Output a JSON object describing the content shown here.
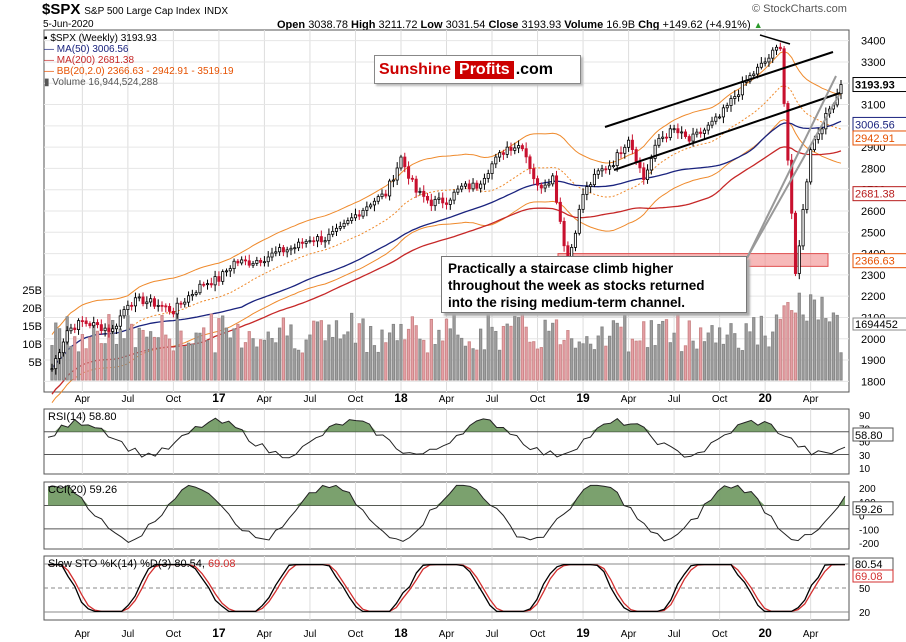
{
  "header": {
    "symbol": "$SPX",
    "name": "S&P 500 Large Cap Index",
    "exchange": "INDX",
    "date": "5-Jun-2020",
    "open_label": "Open",
    "open": "3038.78",
    "high_label": "High",
    "high": "3211.72",
    "low_label": "Low",
    "low": "3031.54",
    "close_label": "Close",
    "close": "3193.93",
    "volume_label": "Volume",
    "volume": "16.9B",
    "chg_label": "Chg",
    "chg": "+149.62 (+4.91%)",
    "chg_arrow": "▲",
    "brand": "© StockCharts.com"
  },
  "legend": {
    "main": "$SPX (Weekly) 3193.93",
    "ma50": "MA(50) 3006.56",
    "ma200": "MA(200) 2681.38",
    "bb": "BB(20,2.0) 2366.63 - 2942.91 - 3519.19",
    "volume": "Volume 16,944,524,288"
  },
  "logo": {
    "part1": "Sunshine",
    "part2": "Profits",
    "part3": ".com"
  },
  "annotation": {
    "line1": "Practically a staircase climb higher",
    "line2": "throughout the week as stocks returned",
    "line3": "into the rising medium-term channel."
  },
  "price_axis": {
    "ticks": [
      "3400",
      "3300",
      "3200",
      "3100",
      "3000",
      "2900",
      "2800",
      "2700",
      "2600",
      "2500",
      "2400",
      "2300",
      "2200",
      "2100",
      "2000",
      "1900",
      "1800"
    ],
    "badges": [
      {
        "label": "3193.93",
        "value": 3193.93,
        "color": "#000000"
      },
      {
        "label": "3006.56",
        "value": 3006.56,
        "color": "#1a237e"
      },
      {
        "label": "2942.91",
        "value": 2942.91,
        "color": "#e65100"
      },
      {
        "label": "2681.38",
        "value": 2681.38,
        "color": "#b71c1c"
      },
      {
        "label": "2366.63",
        "value": 2366.63,
        "color": "#e65100"
      }
    ],
    "volume_badge": "1694452"
  },
  "volume_axis": {
    "ticks": [
      "25B",
      "20B",
      "15B",
      "10B",
      "5B"
    ]
  },
  "x_axis": {
    "labels": [
      "Apr",
      "Jul",
      "Oct",
      "17",
      "Apr",
      "Jul",
      "Oct",
      "18",
      "Apr",
      "Jul",
      "Oct",
      "19",
      "Apr",
      "Jul",
      "Oct",
      "20",
      "Apr"
    ]
  },
  "rsi": {
    "label": "RSI(14) 58.80",
    "ticks": [
      "90",
      "70",
      "50",
      "30",
      "10"
    ],
    "badge": "58.80"
  },
  "cci": {
    "label": "CCI(20) 59.26",
    "ticks": [
      "200",
      "100",
      "0",
      "-100",
      "-200"
    ],
    "badge": "59.26"
  },
  "sto": {
    "label_a": "Slow STO %K(14) %D(3) 80.54, ",
    "label_b": "69.08",
    "ticks": [
      "80",
      "50",
      "20"
    ],
    "badge_k": "80.54",
    "badge_d": "69.08"
  },
  "colors": {
    "up": "#000000",
    "down": "#c8102e",
    "ma50": "#1a237e",
    "ma200": "#c62828",
    "bb": "#ef8a2c",
    "support": "#f28b8b",
    "volume_up": "#a0a0a0",
    "volume_down": "#e8a0a8",
    "osc_fill": "#5a8a4a",
    "osc_neg": "#8a4a4a"
  },
  "chart_data": {
    "type": "candlestick",
    "title": "$SPX S&P 500 Large Cap Index",
    "period": "weekly",
    "ylim": [
      1750,
      3450
    ],
    "series": [
      {
        "name": "$SPX (Weekly)",
        "last": 3193.93
      },
      {
        "name": "MA(50)",
        "last": 3006.56
      },
      {
        "name": "MA(200)",
        "last": 2681.38
      },
      {
        "name": "BB(20,2.0)",
        "lower": 2366.63,
        "middle": 2942.91,
        "upper": 3519.19
      }
    ],
    "close_path": [
      [
        "2016-02",
        1860
      ],
      [
        "2016-03",
        2040
      ],
      [
        "2016-04",
        2080
      ],
      [
        "2016-05",
        2060
      ],
      [
        "2016-06",
        2040
      ],
      [
        "2016-07",
        2170
      ],
      [
        "2016-08",
        2180
      ],
      [
        "2016-09",
        2160
      ],
      [
        "2016-10",
        2130
      ],
      [
        "2016-11",
        2200
      ],
      [
        "2016-12",
        2260
      ],
      [
        "2017-01",
        2280
      ],
      [
        "2017-02",
        2360
      ],
      [
        "2017-03",
        2360
      ],
      [
        "2017-04",
        2380
      ],
      [
        "2017-05",
        2410
      ],
      [
        "2017-06",
        2430
      ],
      [
        "2017-07",
        2470
      ],
      [
        "2017-08",
        2470
      ],
      [
        "2017-09",
        2510
      ],
      [
        "2017-10",
        2580
      ],
      [
        "2017-11",
        2640
      ],
      [
        "2017-12",
        2680
      ],
      [
        "2018-01",
        2850
      ],
      [
        "2018-02",
        2690
      ],
      [
        "2018-03",
        2640
      ],
      [
        "2018-04",
        2650
      ],
      [
        "2018-05",
        2710
      ],
      [
        "2018-06",
        2720
      ],
      [
        "2018-07",
        2820
      ],
      [
        "2018-08",
        2900
      ],
      [
        "2018-09",
        2910
      ],
      [
        "2018-10",
        2710
      ],
      [
        "2018-11",
        2760
      ],
      [
        "2018-12",
        2350
      ],
      [
        "2019-01",
        2680
      ],
      [
        "2019-02",
        2780
      ],
      [
        "2019-03",
        2830
      ],
      [
        "2019-04",
        2945
      ],
      [
        "2019-05",
        2750
      ],
      [
        "2019-06",
        2940
      ],
      [
        "2019-07",
        2980
      ],
      [
        "2019-08",
        2930
      ],
      [
        "2019-09",
        2980
      ],
      [
        "2019-10",
        3040
      ],
      [
        "2019-11",
        3140
      ],
      [
        "2019-12",
        3230
      ],
      [
        "2020-01",
        3300
      ],
      [
        "2020-02",
        3380
      ],
      [
        "2020-03",
        2300
      ],
      [
        "2020-04",
        2900
      ],
      [
        "2020-05",
        3040
      ],
      [
        "2020-06",
        3193.93
      ]
    ],
    "volume_series_label": "Volume 16,944,524,288",
    "annotations": [
      "support zone 2340-2400 (Dec 2018 / Mar 2020)",
      "rising medium-term channel"
    ],
    "indicators": {
      "RSI(14)": 58.8,
      "CCI(20)": 59.26,
      "SlowSTO_K": 80.54,
      "SlowSTO_D": 69.08
    }
  }
}
